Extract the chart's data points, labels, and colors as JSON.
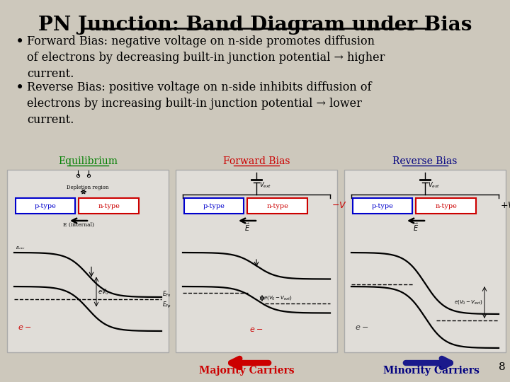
{
  "title": "PN Junction: Band Diagram under Bias",
  "bg_color": "#cdc8bc",
  "title_color": "#000000",
  "title_fontsize": 20,
  "bullet1": "Forward Bias: negative voltage on n-side promotes diffusion\nof electrons by decreasing built-in junction potential → higher\ncurrent.",
  "bullet2": "Reverse Bias: positive voltage on n-side inhibits diffusion of\nelectrons by increasing built-in junction potential → lower\ncurrent.",
  "label_equilibrium": "Equilibrium",
  "label_forward": "Forward Bias",
  "label_reverse": "Reverse Bias",
  "label_eq_color": "#008000",
  "label_fwd_color": "#cc0000",
  "label_rev_color": "#000080",
  "label_majority": "Majority Carriers",
  "label_minority": "Minority Carriers",
  "diagram_bg": "#e0ddd8",
  "page_num": "8"
}
